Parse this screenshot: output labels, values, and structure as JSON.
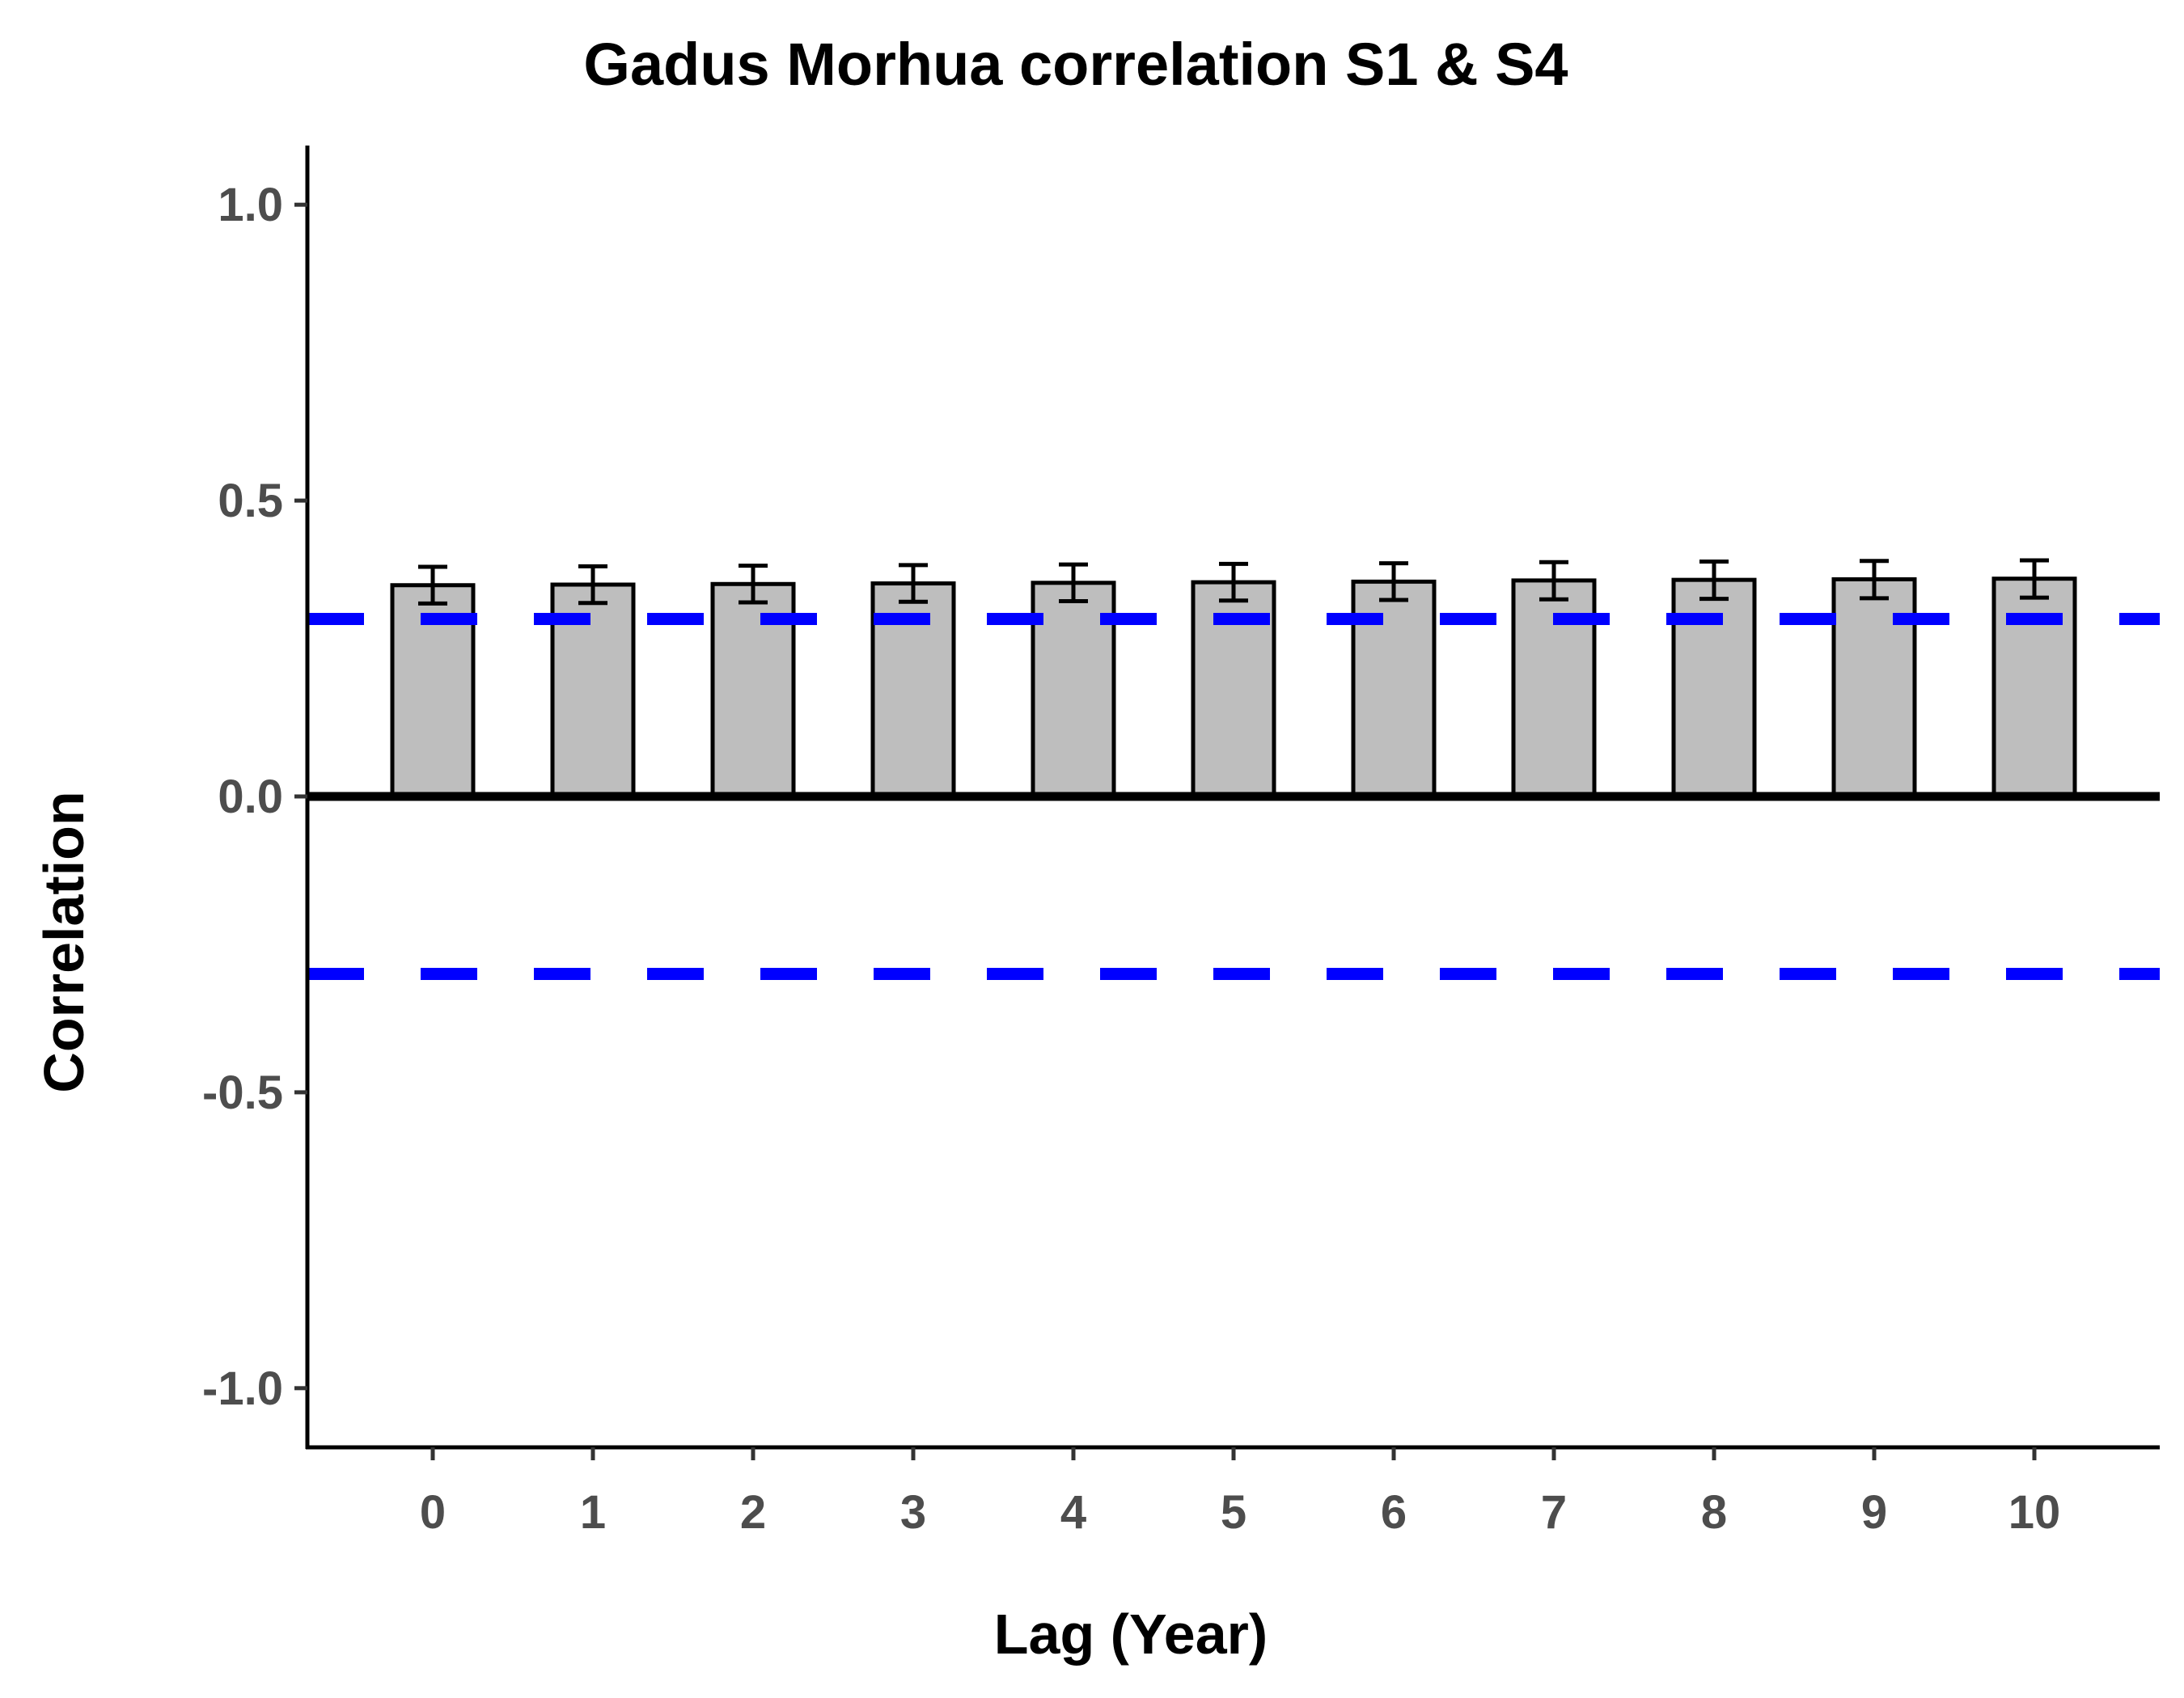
{
  "chart_data": {
    "type": "bar",
    "title": "Gadus Morhua correlation S1 & S4",
    "xlabel": "Lag (Year)",
    "ylabel": "Correlation",
    "categories": [
      "0",
      "1",
      "2",
      "3",
      "4",
      "5",
      "6",
      "7",
      "8",
      "9",
      "10"
    ],
    "values": [
      0.357,
      0.358,
      0.359,
      0.36,
      0.361,
      0.362,
      0.363,
      0.365,
      0.366,
      0.367,
      0.368
    ],
    "error_low": [
      0.326,
      0.327,
      0.328,
      0.329,
      0.33,
      0.331,
      0.332,
      0.333,
      0.334,
      0.335,
      0.336
    ],
    "error_high": [
      0.388,
      0.389,
      0.39,
      0.391,
      0.392,
      0.393,
      0.394,
      0.396,
      0.397,
      0.398,
      0.399
    ],
    "ylim": [
      -1.1,
      1.1
    ],
    "yticks": [
      1.0,
      0.5,
      0.0,
      -0.5,
      -1.0
    ],
    "ytick_labels": [
      "1.0",
      "0.5",
      "0.0",
      "-0.5",
      "-1.0"
    ],
    "reference_lines": [
      0.3,
      -0.3
    ],
    "bar_color": "#bebebe",
    "reference_line_color": "#0000ff",
    "grid": false
  }
}
